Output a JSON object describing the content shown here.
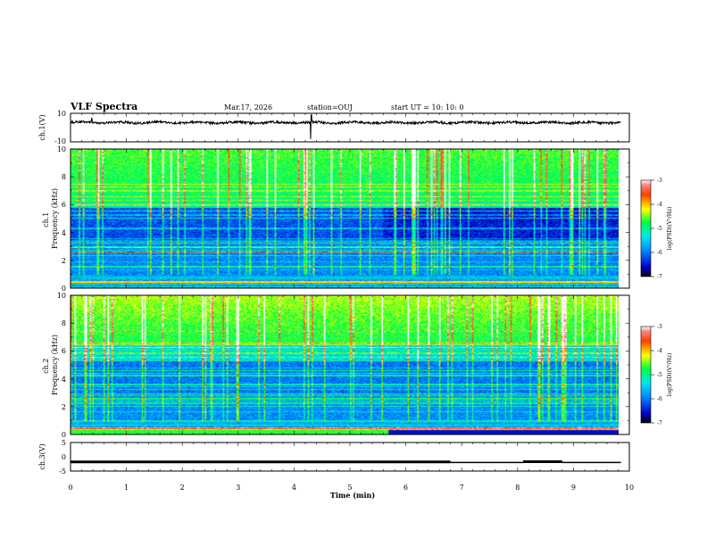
{
  "header": {
    "title": "VLF Spectra",
    "date": "Mar.17, 2026",
    "station": "station=OUJ",
    "start": "start  UT =   10: 10: 0"
  },
  "chart_data": [
    {
      "id": "ch1-waveform",
      "type": "line",
      "ylabel": "ch.1(V)",
      "ylim": [
        -10,
        10
      ],
      "yticks": [
        "10",
        "-10"
      ],
      "xlim": [
        0,
        10
      ],
      "data_end_min": 9.85
    },
    {
      "id": "ch1-spectrogram",
      "type": "heatmap",
      "ylabel": "ch.1\nFrequency (kHz)",
      "ylim": [
        0,
        10
      ],
      "yticks": [
        "0",
        "2",
        "4",
        "6",
        "8",
        "10"
      ],
      "xlim": [
        0,
        10
      ],
      "data_end_min": 9.85,
      "colorbar": {
        "label": "log(PSD)(V²/Hz)",
        "range": [
          -7,
          -3
        ],
        "ticks": [
          "-3",
          "-4",
          "-5",
          "-6",
          "-7"
        ]
      }
    },
    {
      "id": "ch2-spectrogram",
      "type": "heatmap",
      "ylabel": "ch.2\nFrequency (kHz)",
      "ylim": [
        0,
        10
      ],
      "yticks": [
        "0",
        "2",
        "4",
        "6",
        "8",
        "10"
      ],
      "xlim": [
        0,
        10
      ],
      "data_end_min": 9.85,
      "colorbar": {
        "label": "log(PSD)(V²/Hz)",
        "range": [
          -7,
          -3
        ],
        "ticks": [
          "-3",
          "-4",
          "-5",
          "-6",
          "-7"
        ]
      }
    },
    {
      "id": "ch3-waveform",
      "type": "line",
      "ylabel": "ch.3(V)",
      "ylim": [
        -5,
        5
      ],
      "yticks": [
        "5",
        "0",
        "-5"
      ],
      "xlim": [
        0,
        10
      ],
      "data_end_min": 9.85,
      "segments": [
        {
          "x0": 0,
          "x1": 6.8,
          "y": -1.8
        },
        {
          "x0": 6.8,
          "x1": 8.1,
          "y": -2.0
        },
        {
          "x0": 8.1,
          "x1": 8.8,
          "y": -1.7
        },
        {
          "x0": 8.8,
          "x1": 9.85,
          "y": -2.0
        }
      ]
    }
  ],
  "xaxis": {
    "label": "Time  (min)",
    "ticks": [
      "0",
      "1",
      "2",
      "3",
      "4",
      "5",
      "6",
      "7",
      "8",
      "9",
      "10"
    ]
  },
  "colors": {
    "axis": "#000000",
    "background": "#ffffff"
  }
}
